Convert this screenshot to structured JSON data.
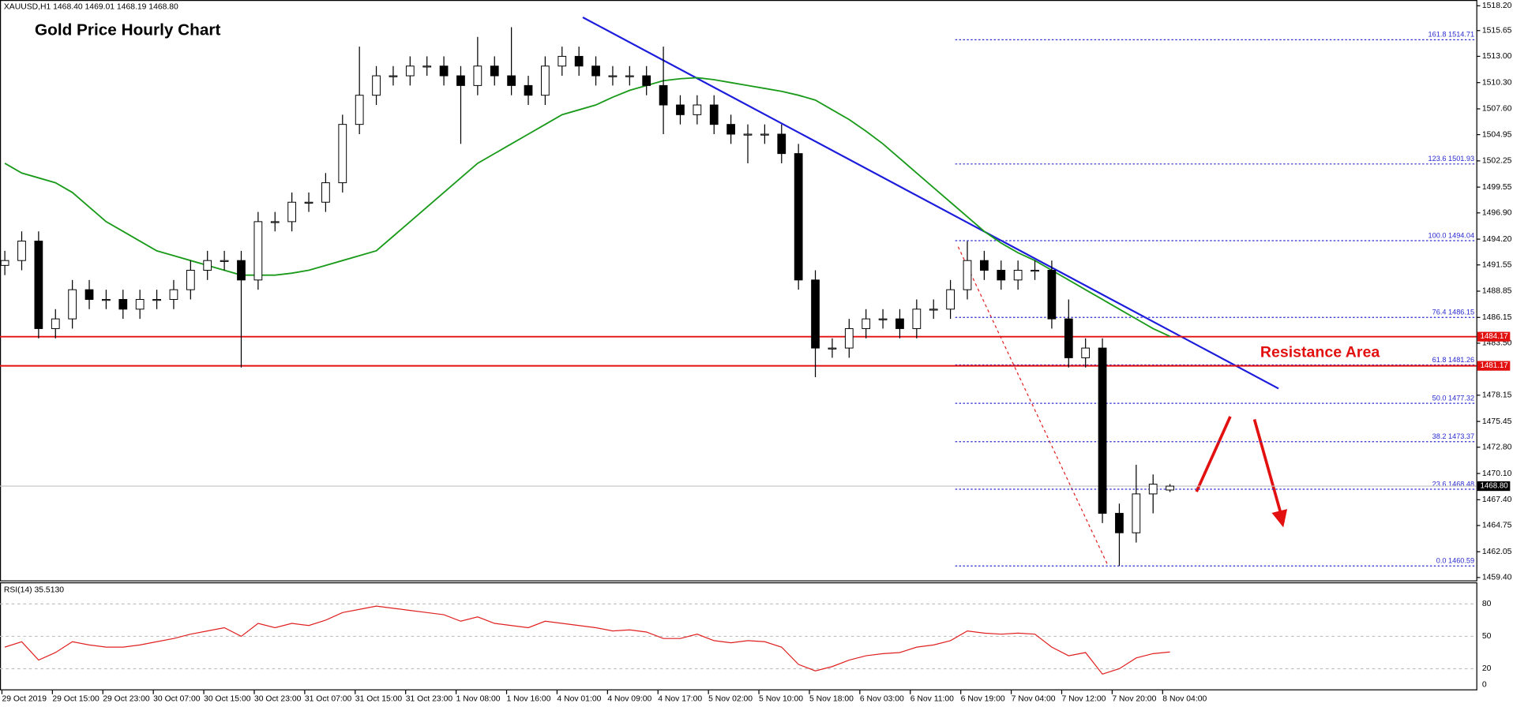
{
  "chart_data": {
    "type": "candlestick",
    "title": "Gold Price Hourly Chart",
    "header": "XAUUSD,H1  1468.40 1469.01 1468.19 1468.80",
    "annotation": "Resistance Area",
    "x_labels": [
      "29 Oct 2019",
      "29 Oct 15:00",
      "29 Oct 23:00",
      "30 Oct 07:00",
      "30 Oct 15:00",
      "30 Oct 23:00",
      "31 Oct 07:00",
      "31 Oct 15:00",
      "31 Oct 23:00",
      "1 Nov 08:00",
      "1 Nov 16:00",
      "4 Nov 01:00",
      "4 Nov 09:00",
      "4 Nov 17:00",
      "5 Nov 02:00",
      "5 Nov 10:00",
      "5 Nov 18:00",
      "6 Nov 03:00",
      "6 Nov 11:00",
      "6 Nov 19:00",
      "7 Nov 04:00",
      "7 Nov 12:00",
      "7 Nov 20:00",
      "8 Nov 04:00"
    ],
    "open": [
      1491.5,
      1492,
      1494,
      1485,
      1486,
      1489,
      1488,
      1488,
      1487,
      1488,
      1488,
      1489,
      1491,
      1492,
      1492,
      1490,
      1496,
      1496,
      1498,
      1498,
      1500,
      1506,
      1509,
      1511,
      1511,
      1512,
      1512,
      1511,
      1510,
      1512,
      1511,
      1510,
      1509,
      1512,
      1513,
      1512,
      1511,
      1511,
      1511,
      1510,
      1508,
      1507,
      1508,
      1506,
      1505,
      1505,
      1505,
      1503,
      1490,
      1483,
      1483,
      1485,
      1486,
      1486,
      1485,
      1487,
      1487,
      1489,
      1492,
      1491,
      1490,
      1491,
      1491,
      1486,
      1482,
      1483,
      1466,
      1464,
      1468,
      1468.4
    ],
    "high": [
      1493,
      1495,
      1495,
      1487,
      1490,
      1490,
      1489,
      1489,
      1489,
      1489,
      1490,
      1492,
      1493,
      1493,
      1493,
      1497,
      1497,
      1499,
      1499,
      1501,
      1507,
      1514,
      1512,
      1512,
      1513,
      1513,
      1513,
      1512,
      1515,
      1513,
      1516,
      1511,
      1513,
      1514,
      1514,
      1513,
      1512,
      1512,
      1512,
      1514,
      1509,
      1509,
      1509,
      1507,
      1506,
      1506,
      1506,
      1504,
      1491,
      1484,
      1486,
      1487,
      1487,
      1487,
      1488,
      1488,
      1490,
      1494,
      1493,
      1492,
      1492,
      1492,
      1492,
      1488,
      1484,
      1484,
      1467,
      1471,
      1470,
      1469.01
    ],
    "low": [
      1490.5,
      1491,
      1484,
      1484,
      1485,
      1487,
      1487,
      1486,
      1486,
      1487,
      1487,
      1488,
      1490,
      1491,
      1481,
      1489,
      1495,
      1495,
      1497,
      1497,
      1499,
      1505,
      1508,
      1510,
      1510,
      1511,
      1510,
      1504,
      1509,
      1510,
      1509,
      1508,
      1508,
      1511,
      1511,
      1510,
      1510,
      1510,
      1509,
      1505,
      1506,
      1506,
      1505,
      1504,
      1502,
      1504,
      1502,
      1489,
      1480,
      1482,
      1482,
      1484,
      1485,
      1484,
      1484,
      1486,
      1486,
      1488,
      1490,
      1489,
      1489,
      1490,
      1485,
      1481,
      1481,
      1465,
      1460.6,
      1463,
      1466,
      1468.19
    ],
    "close": [
      1492,
      1494,
      1485,
      1486,
      1489,
      1488,
      1488,
      1487,
      1488,
      1488,
      1489,
      1491,
      1492,
      1492,
      1490,
      1496,
      1496,
      1498,
      1498,
      1500,
      1506,
      1509,
      1511,
      1511,
      1512,
      1512,
      1511,
      1510,
      1512,
      1511,
      1510,
      1509,
      1512,
      1513,
      1512,
      1511,
      1511,
      1511,
      1510,
      1508,
      1507,
      1508,
      1506,
      1505,
      1505,
      1505,
      1503,
      1490,
      1483,
      1483,
      1485,
      1486,
      1486,
      1485,
      1487,
      1487,
      1489,
      1492,
      1491,
      1490,
      1491,
      1491,
      1486,
      1482,
      1483,
      1466,
      1464,
      1468,
      1469,
      1468.8
    ],
    "ma": {
      "color": "#1a9a1a",
      "values": [
        1502,
        1501,
        1500.5,
        1500,
        1499,
        1497.5,
        1496,
        1495,
        1494,
        1493,
        1492.5,
        1492,
        1491.5,
        1491,
        1490.5,
        1490.5,
        1490.5,
        1490.7,
        1491,
        1491.5,
        1492,
        1492.5,
        1493,
        1494.5,
        1496,
        1497.5,
        1499,
        1500.5,
        1502,
        1503,
        1504,
        1505,
        1506,
        1507,
        1507.5,
        1508,
        1508.8,
        1509.5,
        1510,
        1510.5,
        1510.7,
        1510.8,
        1510.6,
        1510.3,
        1510,
        1509.7,
        1509.4,
        1509,
        1508.5,
        1507.5,
        1506.5,
        1505.3,
        1504,
        1502.5,
        1501,
        1499.5,
        1498,
        1496.5,
        1495,
        1493.8,
        1492.8,
        1492,
        1491,
        1490,
        1489,
        1488,
        1487,
        1486,
        1485,
        1484.2
      ]
    },
    "ylim": [
      1459.4,
      1518.2
    ],
    "yticks": [
      {
        "value": 1518.2,
        "label": "1518.20"
      },
      {
        "value": 1515.65,
        "label": "1515.65"
      },
      {
        "value": 1513.0,
        "label": "1513.00"
      },
      {
        "value": 1510.3,
        "label": "1510.30"
      },
      {
        "value": 1507.6,
        "label": "1507.60"
      },
      {
        "value": 1504.95,
        "label": "1504.95"
      },
      {
        "value": 1502.25,
        "label": "1502.25"
      },
      {
        "value": 1499.55,
        "label": "1499.55"
      },
      {
        "value": 1496.9,
        "label": "1496.90"
      },
      {
        "value": 1494.2,
        "label": "1494.20"
      },
      {
        "value": 1491.55,
        "label": "1491.55"
      },
      {
        "value": 1488.85,
        "label": "1488.85"
      },
      {
        "value": 1486.15,
        "label": "1486.15"
      },
      {
        "value": 1483.5,
        "label": "1483.50"
      },
      {
        "value": 1478.15,
        "label": "1478.15"
      },
      {
        "value": 1475.45,
        "label": "1475.45"
      },
      {
        "value": 1472.8,
        "label": "1472.80"
      },
      {
        "value": 1470.1,
        "label": "1470.10"
      },
      {
        "value": 1467.4,
        "label": "1467.40"
      },
      {
        "value": 1464.75,
        "label": "1464.75"
      },
      {
        "value": 1462.05,
        "label": "1462.05"
      },
      {
        "value": 1459.4,
        "label": "1459.40"
      }
    ],
    "fib_levels": [
      {
        "value": 1514.71,
        "label": "161.8 1514.71"
      },
      {
        "value": 1501.93,
        "label": "123.6 1501.93"
      },
      {
        "value": 1494.04,
        "label": "100.0 1494.04"
      },
      {
        "value": 1486.15,
        "label": "76.4 1486.15"
      },
      {
        "value": 1481.26,
        "label": "61.8 1481.26"
      },
      {
        "value": 1477.32,
        "label": "50.0 1477.32"
      },
      {
        "value": 1473.37,
        "label": "38.2 1473.37"
      },
      {
        "value": 1468.48,
        "label": "23.6 1468.48"
      },
      {
        "value": 1460.59,
        "label": "0.0 1460.59"
      }
    ],
    "levels": [
      {
        "value": 1484.17,
        "label": "1484.17"
      },
      {
        "value": 1481.17,
        "label": "1481.17"
      }
    ],
    "last": {
      "value": 1468.8,
      "label": "1468.80"
    },
    "rsi": {
      "label": "RSI(14) 35.5130",
      "color": "#e02020",
      "values": [
        40,
        45,
        28,
        35,
        45,
        42,
        40,
        40,
        42,
        45,
        48,
        52,
        55,
        58,
        50,
        62,
        58,
        62,
        60,
        65,
        72,
        75,
        78,
        76,
        74,
        72,
        70,
        64,
        68,
        62,
        60,
        58,
        64,
        62,
        60,
        58,
        55,
        56,
        54,
        48,
        48,
        52,
        46,
        44,
        46,
        45,
        40,
        24,
        18,
        22,
        28,
        32,
        34,
        35,
        40,
        42,
        46,
        55,
        53,
        52,
        53,
        52,
        40,
        32,
        35,
        15,
        20,
        30,
        34,
        35.5
      ],
      "ylim": [
        0,
        100
      ],
      "yticks": [
        80,
        50,
        20,
        0
      ]
    }
  }
}
